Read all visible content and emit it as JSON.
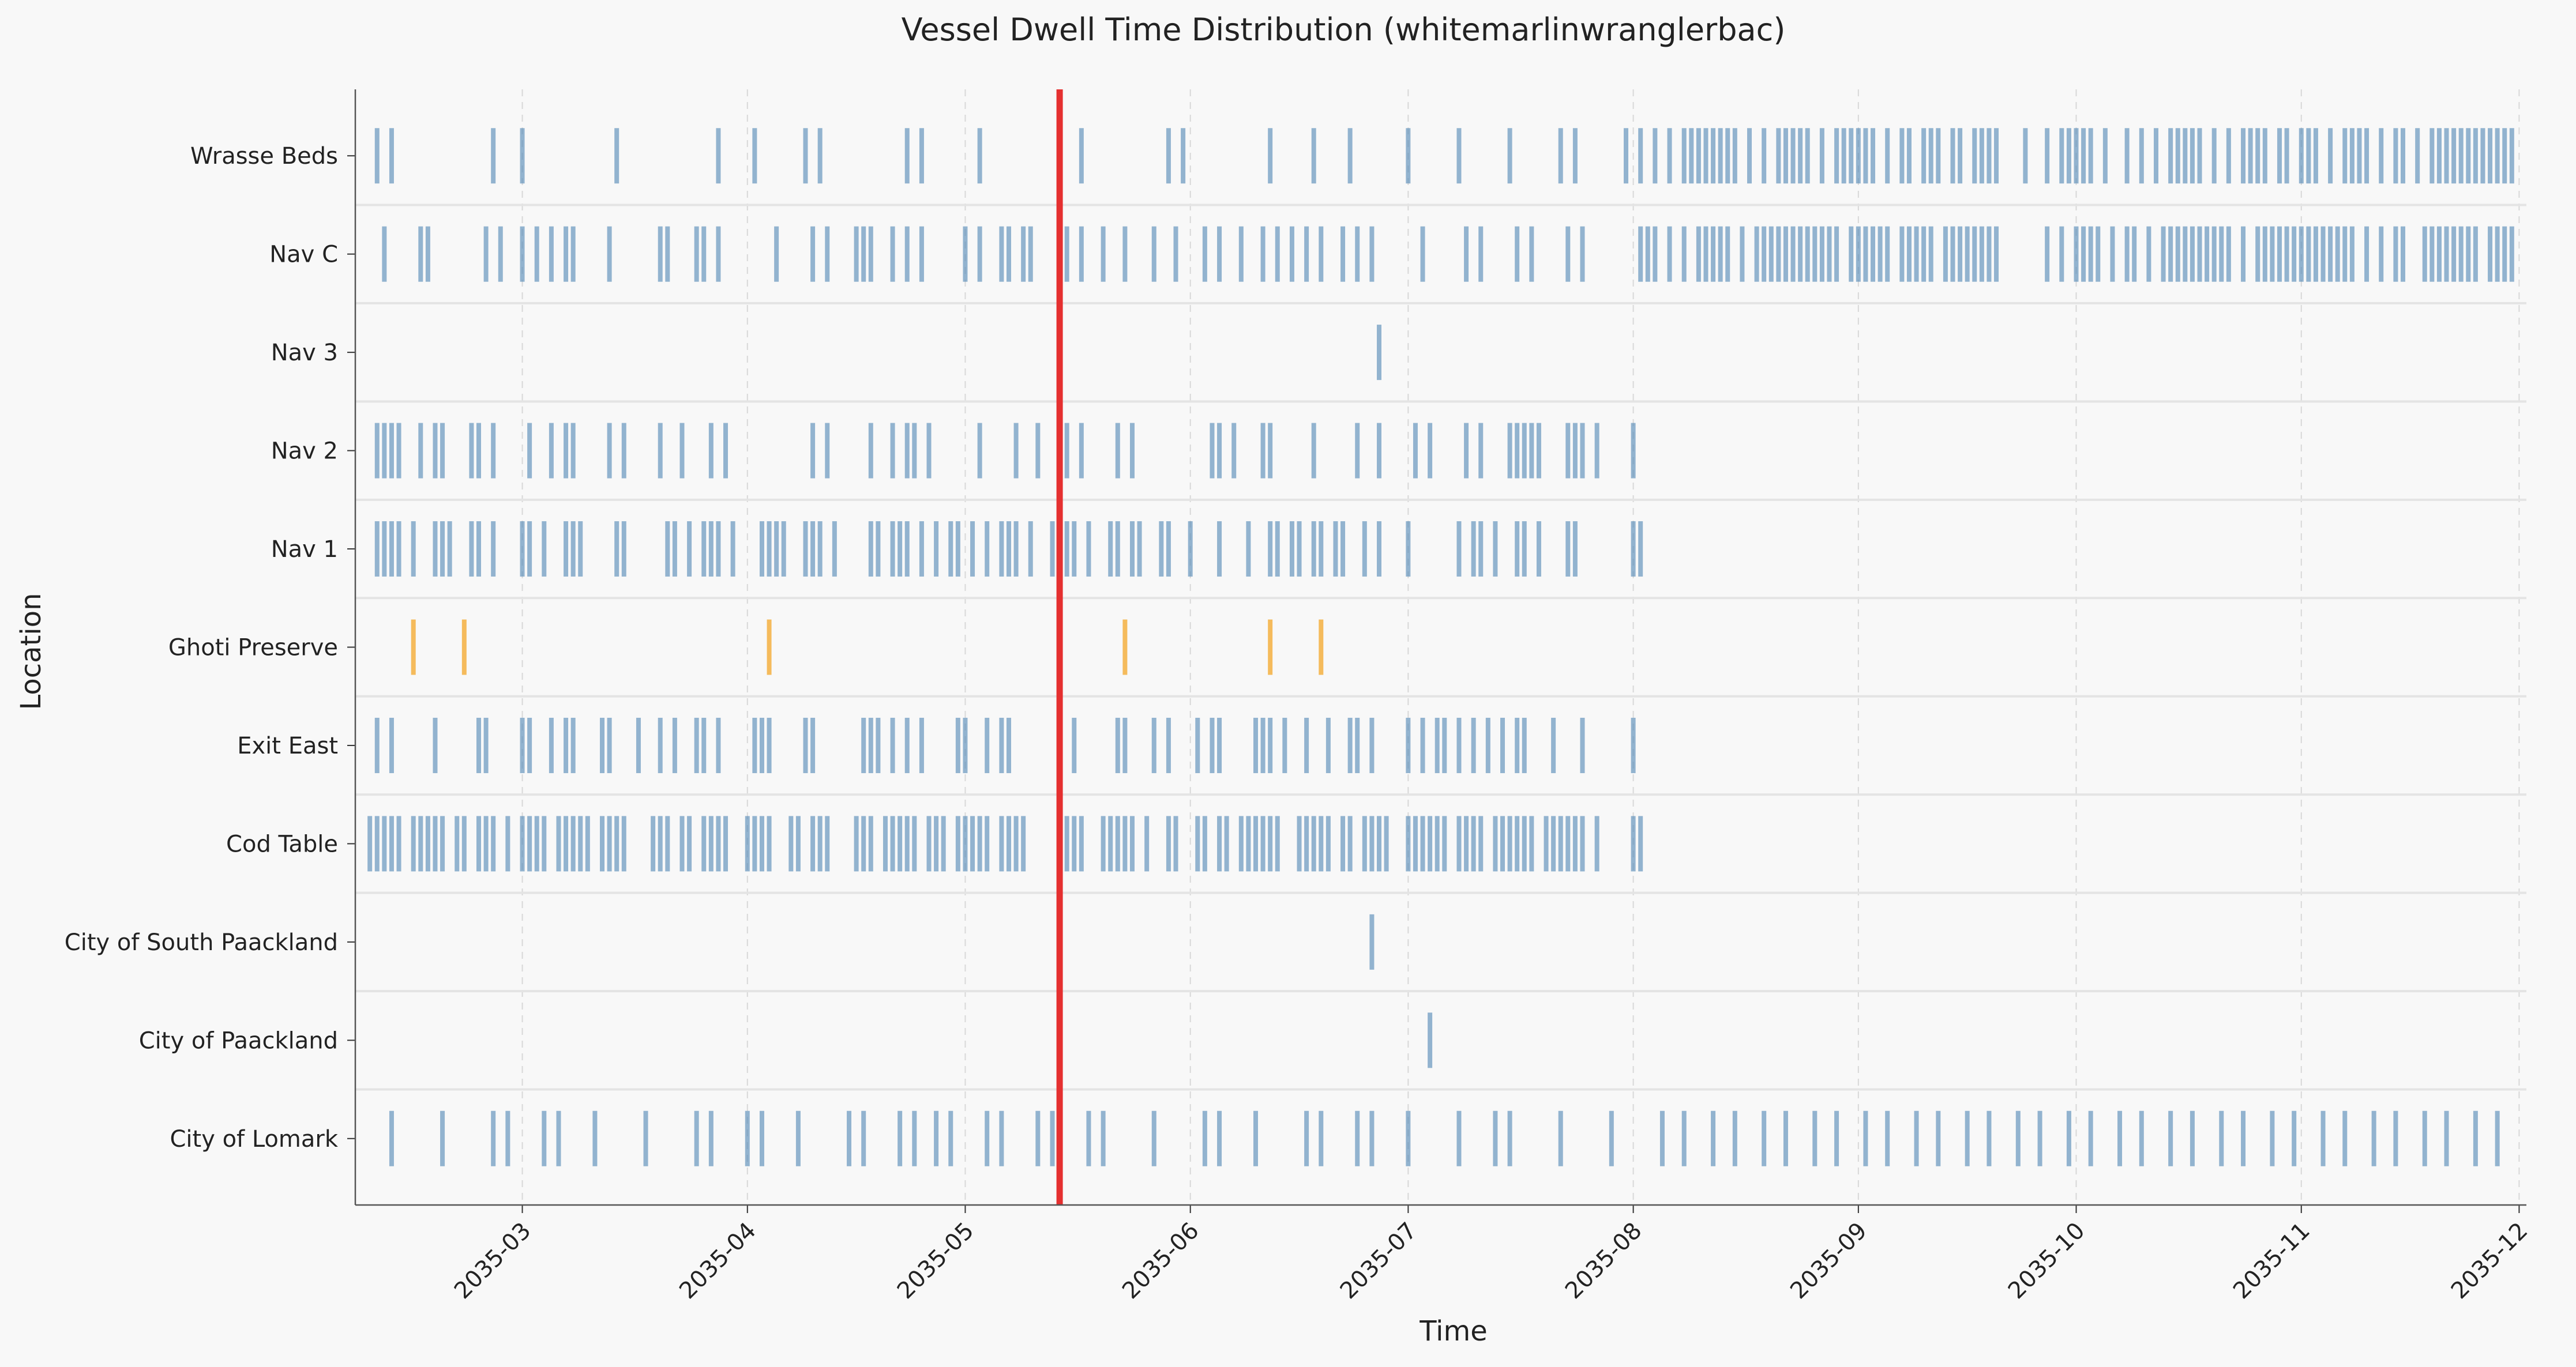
{
  "chart_data": {
    "type": "event-strip",
    "title": "Vessel Dwell Time Distribution (whitemarlinwranglerbac)",
    "xlabel": "Time",
    "ylabel": "Location",
    "x_axis": {
      "type": "date",
      "min": "2035-02-06",
      "max": "2035-12-02"
    },
    "x_ticks": [
      "2035-03",
      "2035-04",
      "2035-05",
      "2035-06",
      "2035-07",
      "2035-08",
      "2035-09",
      "2035-10",
      "2035-11",
      "2035-12"
    ],
    "grid": {
      "x": true,
      "y": false
    },
    "marker_line": {
      "date": "2035-05-14",
      "color": "#e53030"
    },
    "colors": {
      "normal": "#5b8db8",
      "highlight": "#f5b041",
      "background": "#f8f8f8"
    },
    "categories": [
      "Wrasse Beds",
      "Nav C",
      "Nav 3",
      "Nav 2",
      "Nav 1",
      "Ghoti Preserve",
      "Exit East",
      "Cod Table",
      "City of South Paackland",
      "City of Paackland",
      "City of Lomark"
    ],
    "series": [
      {
        "location": "Wrasse Beds",
        "color": "normal",
        "dates": [
          "2035-02-09",
          "2035-02-11",
          "2035-02-25",
          "2035-03-01",
          "2035-03-14",
          "2035-03-28",
          "2035-04-02",
          "2035-04-09",
          "2035-04-11",
          "2035-04-23",
          "2035-04-25",
          "2035-05-03",
          "2035-05-17",
          "2035-05-29",
          "2035-05-31",
          "2035-06-12",
          "2035-06-18",
          "2035-06-23",
          "2035-07-01",
          "2035-07-08",
          "2035-07-15",
          "2035-07-22",
          "2035-07-24",
          "2035-07-31",
          "2035-08-02",
          "2035-08-04",
          "2035-08-06",
          "2035-08-08",
          "2035-08-09",
          "2035-08-10",
          "2035-08-11",
          "2035-08-12",
          "2035-08-13",
          "2035-08-14",
          "2035-08-15",
          "2035-08-17",
          "2035-08-19",
          "2035-08-21",
          "2035-08-22",
          "2035-08-23",
          "2035-08-24",
          "2035-08-25",
          "2035-08-27",
          "2035-08-29",
          "2035-08-30",
          "2035-08-31",
          "2035-09-01",
          "2035-09-02",
          "2035-09-03",
          "2035-09-05",
          "2035-09-07",
          "2035-09-08",
          "2035-09-10",
          "2035-09-11",
          "2035-09-12",
          "2035-09-14",
          "2035-09-15",
          "2035-09-17",
          "2035-09-18",
          "2035-09-19",
          "2035-09-20",
          "2035-09-24",
          "2035-09-27",
          "2035-09-29",
          "2035-09-30",
          "2035-10-01",
          "2035-10-02",
          "2035-10-03",
          "2035-10-05",
          "2035-10-08",
          "2035-10-10",
          "2035-10-12",
          "2035-10-14",
          "2035-10-15",
          "2035-10-16",
          "2035-10-17",
          "2035-10-18",
          "2035-10-20",
          "2035-10-22",
          "2035-10-24",
          "2035-10-25",
          "2035-10-26",
          "2035-10-27",
          "2035-10-29",
          "2035-10-30",
          "2035-11-01",
          "2035-11-02",
          "2035-11-03",
          "2035-11-05",
          "2035-11-07",
          "2035-11-08",
          "2035-11-09",
          "2035-11-10",
          "2035-11-12",
          "2035-11-14",
          "2035-11-15",
          "2035-11-17",
          "2035-11-19",
          "2035-11-20",
          "2035-11-21",
          "2035-11-22",
          "2035-11-23",
          "2035-11-24",
          "2035-11-25",
          "2035-11-26",
          "2035-11-27",
          "2035-11-28",
          "2035-11-29",
          "2035-11-30"
        ]
      },
      {
        "location": "Nav C",
        "color": "normal",
        "dates": [
          "2035-02-10",
          "2035-02-15",
          "2035-02-16",
          "2035-02-24",
          "2035-02-26",
          "2035-03-01",
          "2035-03-03",
          "2035-03-05",
          "2035-03-07",
          "2035-03-08",
          "2035-03-13",
          "2035-03-20",
          "2035-03-21",
          "2035-03-25",
          "2035-03-26",
          "2035-03-28",
          "2035-04-05",
          "2035-04-10",
          "2035-04-12",
          "2035-04-16",
          "2035-04-17",
          "2035-04-18",
          "2035-04-21",
          "2035-04-23",
          "2035-04-25",
          "2035-05-01",
          "2035-05-03",
          "2035-05-06",
          "2035-05-07",
          "2035-05-09",
          "2035-05-10",
          "2035-05-15",
          "2035-05-17",
          "2035-05-20",
          "2035-05-23",
          "2035-05-27",
          "2035-05-30",
          "2035-06-03",
          "2035-06-05",
          "2035-06-08",
          "2035-06-11",
          "2035-06-13",
          "2035-06-15",
          "2035-06-17",
          "2035-06-19",
          "2035-06-22",
          "2035-06-24",
          "2035-06-26",
          "2035-07-03",
          "2035-07-09",
          "2035-07-11",
          "2035-07-16",
          "2035-07-18",
          "2035-07-23",
          "2035-07-25",
          "2035-08-02",
          "2035-08-03",
          "2035-08-04",
          "2035-08-06",
          "2035-08-08",
          "2035-08-10",
          "2035-08-11",
          "2035-08-12",
          "2035-08-13",
          "2035-08-14",
          "2035-08-16",
          "2035-08-18",
          "2035-08-19",
          "2035-08-20",
          "2035-08-21",
          "2035-08-22",
          "2035-08-23",
          "2035-08-24",
          "2035-08-25",
          "2035-08-26",
          "2035-08-27",
          "2035-08-28",
          "2035-08-29",
          "2035-08-31",
          "2035-09-01",
          "2035-09-02",
          "2035-09-03",
          "2035-09-04",
          "2035-09-05",
          "2035-09-07",
          "2035-09-08",
          "2035-09-09",
          "2035-09-10",
          "2035-09-11",
          "2035-09-13",
          "2035-09-14",
          "2035-09-15",
          "2035-09-16",
          "2035-09-17",
          "2035-09-18",
          "2035-09-19",
          "2035-09-20",
          "2035-09-27",
          "2035-09-29",
          "2035-10-01",
          "2035-10-02",
          "2035-10-03",
          "2035-10-04",
          "2035-10-06",
          "2035-10-08",
          "2035-10-09",
          "2035-10-11",
          "2035-10-13",
          "2035-10-14",
          "2035-10-15",
          "2035-10-16",
          "2035-10-17",
          "2035-10-18",
          "2035-10-19",
          "2035-10-20",
          "2035-10-21",
          "2035-10-22",
          "2035-10-24",
          "2035-10-26",
          "2035-10-27",
          "2035-10-28",
          "2035-10-29",
          "2035-10-30",
          "2035-10-31",
          "2035-11-01",
          "2035-11-02",
          "2035-11-03",
          "2035-11-04",
          "2035-11-05",
          "2035-11-06",
          "2035-11-07",
          "2035-11-08",
          "2035-11-10",
          "2035-11-12",
          "2035-11-14",
          "2035-11-15",
          "2035-11-18",
          "2035-11-19",
          "2035-11-20",
          "2035-11-21",
          "2035-11-22",
          "2035-11-23",
          "2035-11-24",
          "2035-11-25",
          "2035-11-27",
          "2035-11-28",
          "2035-11-29",
          "2035-11-30"
        ]
      },
      {
        "location": "Nav 3",
        "color": "normal",
        "dates": [
          "2035-06-27"
        ]
      },
      {
        "location": "Nav 2",
        "color": "normal",
        "dates": [
          "2035-02-09",
          "2035-02-10",
          "2035-02-11",
          "2035-02-12",
          "2035-02-15",
          "2035-02-17",
          "2035-02-18",
          "2035-02-22",
          "2035-02-23",
          "2035-02-25",
          "2035-03-02",
          "2035-03-05",
          "2035-03-07",
          "2035-03-08",
          "2035-03-13",
          "2035-03-15",
          "2035-03-20",
          "2035-03-23",
          "2035-03-27",
          "2035-03-29",
          "2035-04-10",
          "2035-04-12",
          "2035-04-18",
          "2035-04-21",
          "2035-04-23",
          "2035-04-24",
          "2035-04-26",
          "2035-05-03",
          "2035-05-08",
          "2035-05-11",
          "2035-05-15",
          "2035-05-17",
          "2035-05-22",
          "2035-05-24",
          "2035-06-04",
          "2035-06-05",
          "2035-06-07",
          "2035-06-11",
          "2035-06-12",
          "2035-06-18",
          "2035-06-24",
          "2035-06-27",
          "2035-07-02",
          "2035-07-04",
          "2035-07-09",
          "2035-07-11",
          "2035-07-15",
          "2035-07-16",
          "2035-07-17",
          "2035-07-18",
          "2035-07-19",
          "2035-07-23",
          "2035-07-24",
          "2035-07-25",
          "2035-07-27",
          "2035-08-01"
        ]
      },
      {
        "location": "Nav 1",
        "color": "normal",
        "dates": [
          "2035-02-09",
          "2035-02-10",
          "2035-02-11",
          "2035-02-12",
          "2035-02-14",
          "2035-02-17",
          "2035-02-18",
          "2035-02-19",
          "2035-02-22",
          "2035-02-23",
          "2035-02-25",
          "2035-03-01",
          "2035-03-02",
          "2035-03-04",
          "2035-03-07",
          "2035-03-08",
          "2035-03-09",
          "2035-03-14",
          "2035-03-15",
          "2035-03-21",
          "2035-03-22",
          "2035-03-24",
          "2035-03-26",
          "2035-03-27",
          "2035-03-28",
          "2035-03-30",
          "2035-04-03",
          "2035-04-04",
          "2035-04-05",
          "2035-04-06",
          "2035-04-09",
          "2035-04-10",
          "2035-04-11",
          "2035-04-13",
          "2035-04-18",
          "2035-04-19",
          "2035-04-21",
          "2035-04-22",
          "2035-04-23",
          "2035-04-25",
          "2035-04-27",
          "2035-04-29",
          "2035-04-30",
          "2035-05-02",
          "2035-05-04",
          "2035-05-06",
          "2035-05-07",
          "2035-05-08",
          "2035-05-10",
          "2035-05-13",
          "2035-05-15",
          "2035-05-16",
          "2035-05-18",
          "2035-05-21",
          "2035-05-22",
          "2035-05-24",
          "2035-05-25",
          "2035-05-28",
          "2035-05-29",
          "2035-06-01",
          "2035-06-05",
          "2035-06-09",
          "2035-06-12",
          "2035-06-13",
          "2035-06-15",
          "2035-06-16",
          "2035-06-18",
          "2035-06-19",
          "2035-06-21",
          "2035-06-22",
          "2035-06-25",
          "2035-06-27",
          "2035-07-01",
          "2035-07-08",
          "2035-07-10",
          "2035-07-11",
          "2035-07-13",
          "2035-07-16",
          "2035-07-17",
          "2035-07-19",
          "2035-07-23",
          "2035-07-24",
          "2035-08-01",
          "2035-08-02"
        ]
      },
      {
        "location": "Ghoti Preserve",
        "color": "highlight",
        "dates": [
          "2035-02-14",
          "2035-02-21",
          "2035-04-04",
          "2035-05-23",
          "2035-06-12",
          "2035-06-19"
        ]
      },
      {
        "location": "Exit East",
        "color": "normal",
        "dates": [
          "2035-02-09",
          "2035-02-11",
          "2035-02-17",
          "2035-02-23",
          "2035-02-24",
          "2035-03-01",
          "2035-03-02",
          "2035-03-05",
          "2035-03-07",
          "2035-03-08",
          "2035-03-12",
          "2035-03-13",
          "2035-03-17",
          "2035-03-20",
          "2035-03-22",
          "2035-03-25",
          "2035-03-26",
          "2035-03-28",
          "2035-04-02",
          "2035-04-03",
          "2035-04-04",
          "2035-04-09",
          "2035-04-10",
          "2035-04-17",
          "2035-04-18",
          "2035-04-19",
          "2035-04-21",
          "2035-04-23",
          "2035-04-25",
          "2035-04-30",
          "2035-05-01",
          "2035-05-04",
          "2035-05-06",
          "2035-05-07",
          "2035-05-14",
          "2035-05-16",
          "2035-05-22",
          "2035-05-23",
          "2035-05-27",
          "2035-05-29",
          "2035-06-02",
          "2035-06-04",
          "2035-06-05",
          "2035-06-10",
          "2035-06-11",
          "2035-06-12",
          "2035-06-14",
          "2035-06-17",
          "2035-06-20",
          "2035-06-23",
          "2035-06-24",
          "2035-06-26",
          "2035-07-01",
          "2035-07-03",
          "2035-07-05",
          "2035-07-06",
          "2035-07-08",
          "2035-07-10",
          "2035-07-12",
          "2035-07-14",
          "2035-07-16",
          "2035-07-17",
          "2035-07-21",
          "2035-07-25",
          "2035-08-01"
        ]
      },
      {
        "location": "Cod Table",
        "color": "normal",
        "dates": [
          "2035-02-08",
          "2035-02-09",
          "2035-02-10",
          "2035-02-11",
          "2035-02-12",
          "2035-02-14",
          "2035-02-15",
          "2035-02-16",
          "2035-02-17",
          "2035-02-18",
          "2035-02-20",
          "2035-02-21",
          "2035-02-23",
          "2035-02-24",
          "2035-02-25",
          "2035-02-27",
          "2035-03-01",
          "2035-03-02",
          "2035-03-03",
          "2035-03-04",
          "2035-03-06",
          "2035-03-07",
          "2035-03-08",
          "2035-03-09",
          "2035-03-10",
          "2035-03-12",
          "2035-03-13",
          "2035-03-14",
          "2035-03-15",
          "2035-03-19",
          "2035-03-20",
          "2035-03-21",
          "2035-03-23",
          "2035-03-24",
          "2035-03-26",
          "2035-03-27",
          "2035-03-28",
          "2035-03-29",
          "2035-04-01",
          "2035-04-02",
          "2035-04-03",
          "2035-04-04",
          "2035-04-07",
          "2035-04-08",
          "2035-04-10",
          "2035-04-11",
          "2035-04-12",
          "2035-04-16",
          "2035-04-17",
          "2035-04-18",
          "2035-04-20",
          "2035-04-21",
          "2035-04-22",
          "2035-04-23",
          "2035-04-24",
          "2035-04-26",
          "2035-04-27",
          "2035-04-28",
          "2035-04-30",
          "2035-05-01",
          "2035-05-02",
          "2035-05-03",
          "2035-05-04",
          "2035-05-06",
          "2035-05-07",
          "2035-05-08",
          "2035-05-09",
          "2035-05-14",
          "2035-05-15",
          "2035-05-16",
          "2035-05-17",
          "2035-05-20",
          "2035-05-21",
          "2035-05-22",
          "2035-05-23",
          "2035-05-24",
          "2035-05-26",
          "2035-05-29",
          "2035-05-30",
          "2035-06-02",
          "2035-06-03",
          "2035-06-05",
          "2035-06-06",
          "2035-06-08",
          "2035-06-09",
          "2035-06-10",
          "2035-06-11",
          "2035-06-12",
          "2035-06-13",
          "2035-06-16",
          "2035-06-17",
          "2035-06-18",
          "2035-06-19",
          "2035-06-20",
          "2035-06-22",
          "2035-06-23",
          "2035-06-25",
          "2035-06-26",
          "2035-06-27",
          "2035-06-28",
          "2035-07-01",
          "2035-07-02",
          "2035-07-03",
          "2035-07-04",
          "2035-07-05",
          "2035-07-06",
          "2035-07-08",
          "2035-07-09",
          "2035-07-10",
          "2035-07-11",
          "2035-07-13",
          "2035-07-14",
          "2035-07-15",
          "2035-07-16",
          "2035-07-17",
          "2035-07-18",
          "2035-07-20",
          "2035-07-21",
          "2035-07-22",
          "2035-07-23",
          "2035-07-24",
          "2035-07-25",
          "2035-07-27",
          "2035-08-01",
          "2035-08-02"
        ]
      },
      {
        "location": "City of South Paackland",
        "color": "normal",
        "dates": [
          "2035-06-26"
        ]
      },
      {
        "location": "City of Paackland",
        "color": "normal",
        "dates": [
          "2035-07-04"
        ]
      },
      {
        "location": "City of Lomark",
        "color": "normal",
        "dates": [
          "2035-02-11",
          "2035-02-18",
          "2035-02-25",
          "2035-02-27",
          "2035-03-04",
          "2035-03-06",
          "2035-03-11",
          "2035-03-18",
          "2035-03-25",
          "2035-03-27",
          "2035-04-01",
          "2035-04-03",
          "2035-04-08",
          "2035-04-15",
          "2035-04-17",
          "2035-04-22",
          "2035-04-24",
          "2035-04-27",
          "2035-04-29",
          "2035-05-04",
          "2035-05-06",
          "2035-05-11",
          "2035-05-13",
          "2035-05-18",
          "2035-05-20",
          "2035-05-27",
          "2035-06-03",
          "2035-06-05",
          "2035-06-10",
          "2035-06-17",
          "2035-06-19",
          "2035-06-24",
          "2035-06-26",
          "2035-07-01",
          "2035-07-08",
          "2035-07-13",
          "2035-07-15",
          "2035-07-22",
          "2035-07-29",
          "2035-08-05",
          "2035-08-08",
          "2035-08-12",
          "2035-08-15",
          "2035-08-19",
          "2035-08-22",
          "2035-08-26",
          "2035-08-29",
          "2035-09-02",
          "2035-09-05",
          "2035-09-09",
          "2035-09-12",
          "2035-09-16",
          "2035-09-19",
          "2035-09-23",
          "2035-09-26",
          "2035-09-30",
          "2035-10-03",
          "2035-10-07",
          "2035-10-10",
          "2035-10-14",
          "2035-10-17",
          "2035-10-21",
          "2035-10-24",
          "2035-10-28",
          "2035-10-31",
          "2035-11-04",
          "2035-11-07",
          "2035-11-11",
          "2035-11-14",
          "2035-11-18",
          "2035-11-21",
          "2035-11-25",
          "2035-11-28"
        ]
      }
    ]
  }
}
